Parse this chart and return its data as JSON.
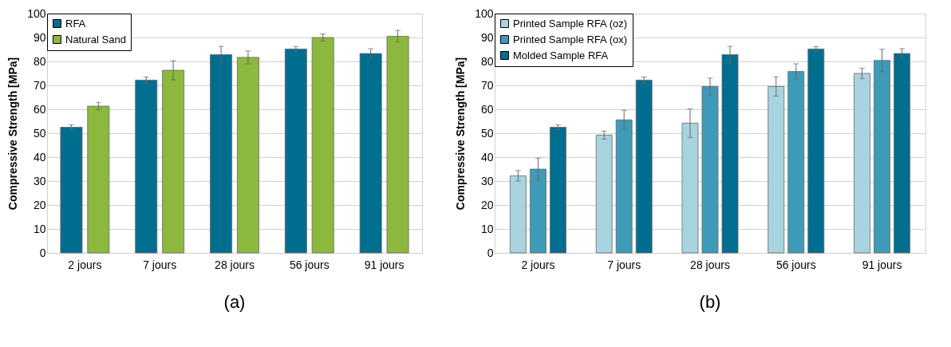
{
  "chart_data": [
    {
      "type": "bar",
      "title": "(a)",
      "ylabel": "Compressive Strength [MPa]",
      "categories": [
        "2 jours",
        "7 jours",
        "28 jours",
        "56 jours",
        "91 jours"
      ],
      "series": [
        {
          "name": "RFA",
          "color": "#006e8f",
          "values": [
            52.5,
            72.2,
            82.8,
            85.2,
            83.3
          ],
          "errors": [
            1,
            1.3,
            3.5,
            1,
            2
          ]
        },
        {
          "name": "Natural Sand",
          "color": "#8db83e",
          "values": [
            61.3,
            76.3,
            81.7,
            90,
            90.5
          ],
          "errors": [
            1.5,
            4,
            2.7,
            1.5,
            2.5
          ]
        }
      ],
      "ylim": [
        0,
        100
      ],
      "yticks": [
        0,
        10,
        20,
        30,
        40,
        50,
        60,
        70,
        80,
        90,
        100
      ],
      "grid": "y",
      "legend": "top left"
    },
    {
      "type": "bar",
      "title": "(b)",
      "ylabel": "Compressive Strength [MPa]",
      "categories": [
        "2 jours",
        "7 jours",
        "28 jours",
        "56 jours",
        "91 jours"
      ],
      "series": [
        {
          "name": "Printed Sample RFA (oz)",
          "color": "#a8d4df",
          "values": [
            32.2,
            49.2,
            54.2,
            69.5,
            75
          ],
          "errors": [
            2.2,
            1.7,
            6,
            4,
            2.2
          ]
        },
        {
          "name": "Printed Sample RFA (ox)",
          "color": "#3e9bb8",
          "values": [
            35,
            55.6,
            69.5,
            75.8,
            80.4
          ],
          "errors": [
            4.6,
            4,
            3.5,
            3.2,
            4.7
          ]
        },
        {
          "name": "Molded Sample RFA",
          "color": "#006e8f",
          "values": [
            52.5,
            72.2,
            82.8,
            85.2,
            83.3
          ],
          "errors": [
            1,
            1.3,
            3.5,
            1,
            2
          ]
        }
      ],
      "ylim": [
        0,
        100
      ],
      "yticks": [
        0,
        10,
        20,
        30,
        40,
        50,
        60,
        70,
        80,
        90,
        100
      ],
      "grid": "y",
      "legend": "top left"
    }
  ]
}
